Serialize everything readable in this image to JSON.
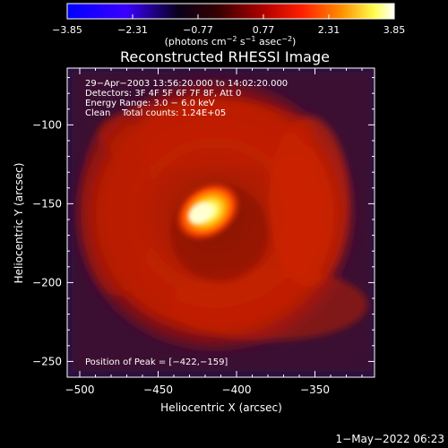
{
  "chart_data": {
    "type": "heatmap",
    "title": "Reconstructed RHESSI Image",
    "xlabel": "Heliocentric X (arcsec)",
    "ylabel": "Heliocentric Y (arcsec)",
    "xlim": [
      -508,
      -312
    ],
    "ylim": [
      -260,
      -64
    ],
    "x_ticks": [
      -500,
      -450,
      -400,
      -350
    ],
    "x_tick_labels": [
      "−500",
      "−450",
      "−400",
      "−350"
    ],
    "y_ticks": [
      -250,
      -200,
      -150,
      -100
    ],
    "y_tick_labels": [
      "−250",
      "−200",
      "−150",
      "−100"
    ],
    "colorbar": {
      "range": [
        -3.85,
        3.85
      ],
      "ticks": [
        -3.85,
        -2.31,
        -0.77,
        0.77,
        2.31,
        3.85
      ],
      "tick_labels": [
        "−3.85",
        "−2.31",
        "−0.77",
        "0.77",
        "2.31",
        "3.85"
      ],
      "unit_prefix": "(photons cm",
      "unit_exp1": "−2",
      "unit_mid": " s",
      "unit_exp2": "−1",
      "unit_mid2": " asec",
      "unit_exp3": "−2",
      "unit_suffix": ")",
      "stops": [
        "#0000ff",
        "#3300ff",
        "#000022",
        "#400000",
        "#b00000",
        "#ff3000",
        "#ff9000",
        "#ffff60",
        "#ffffff"
      ]
    },
    "annotations": [
      "29−Apr−2003 13:56:20.000 to 14:02:20.000",
      "Detectors: 3F 4F 5F 6F 7F 8F, Att 0",
      "Energy Range: 3.0 − 6.0 keV",
      "Clean    Total counts: 1.24E+05"
    ],
    "peak_label": "Position of Peak = [−422,−159]",
    "peak": [
      -422,
      -159
    ],
    "ring_center": [
      -420,
      -158
    ],
    "ring_radius": 68,
    "background_color": "#2a1245"
  },
  "footer": {
    "timestamp": "1−May−2022 06:23"
  }
}
